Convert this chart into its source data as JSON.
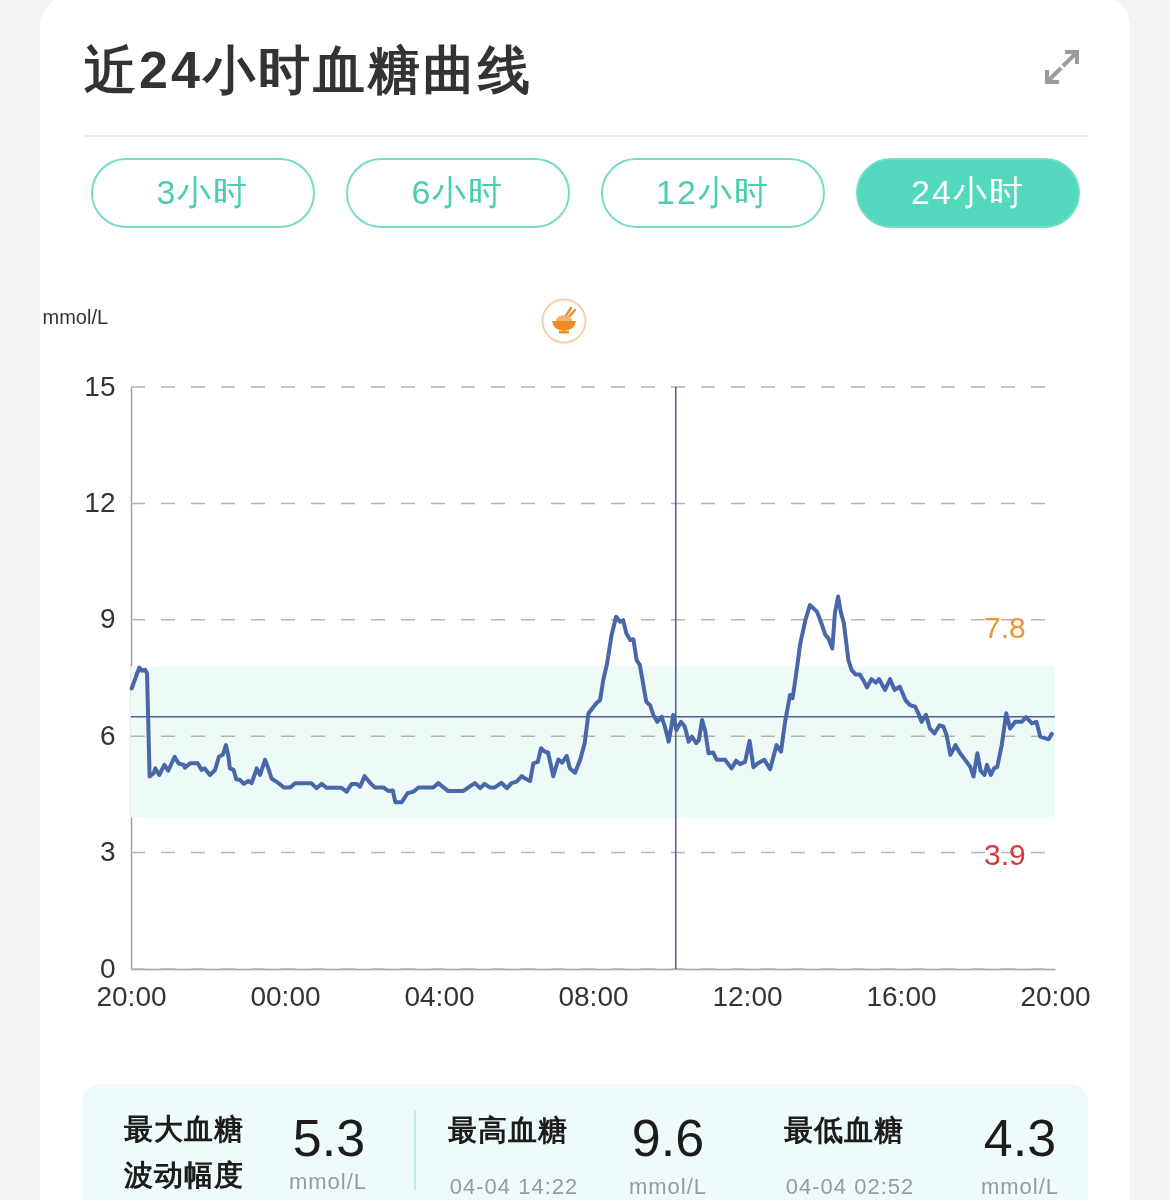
{
  "chart_data": [
    {
      "type": "line",
      "title": "近24小时血糖曲线",
      "ylabel": "mmol/L",
      "x": [
        "--04-03T20:01",
        "--04-03T20:13",
        "--04-03T20:17",
        "--04-03T20:22",
        "--04-03T20:25",
        "--04-03T20:29",
        "--04-03T20:35",
        "--04-03T20:38",
        "--04-03T20:44",
        "--04-03T20:52",
        "--04-03T20:58",
        "--04-03T21:08",
        "--04-03T21:14",
        "--04-03T21:22",
        "--04-03T21:24",
        "--04-03T21:32",
        "--04-03T21:44",
        "--04-03T21:50",
        "--04-03T21:55",
        "--04-03T22:03",
        "--04-03T22:11",
        "--04-03T22:17",
        "--04-03T22:23",
        "--04-03T22:28",
        "--04-03T22:32",
        "--04-03T22:34",
        "--04-03T22:40",
        "--04-03T22:44",
        "--04-03T22:50",
        "--04-03T22:56",
        "--04-03T23:03",
        "--04-03T23:08",
        "--04-03T23:16",
        "--04-03T23:21",
        "--04-03T23:29",
        "--04-03T23:34",
        "--04-03T23:39",
        "--04-03T23:50",
        "--04-03T23:58",
        "--04-04T00:08",
        "--04-04T00:16",
        "--04-04T00:41",
        "--04-04T00:49",
        "--04-04T00:57",
        "--04-04T01:05",
        "--04-04T01:28",
        "--04-04T01:36",
        "--04-04T01:44",
        "--04-04T01:52",
        "--04-04T01:57",
        "--04-04T02:04",
        "--04-04T02:13",
        "--04-04T02:20",
        "--04-04T02:33",
        "--04-04T02:41",
        "--04-04T02:48",
        "--04-04T02:52",
        "--04-04T03:02",
        "--04-04T03:11",
        "--04-04T03:20",
        "--04-04T03:28",
        "--04-04T03:51",
        "--04-04T03:59",
        "--04-04T04:04",
        "--04-04T04:14",
        "--04-04T04:38",
        "--04-04T04:46",
        "--04-04T04:56",
        "--04-04T05:04",
        "--04-04T05:11",
        "--04-04T05:19",
        "--04-04T05:27",
        "--04-04T05:37",
        "--04-04T05:46",
        "--04-04T05:53",
        "--04-04T06:01",
        "--04-04T06:09",
        "--04-04T06:14",
        "--04-04T06:22",
        "--04-04T06:27",
        "--04-04T06:34",
        "--04-04T06:39",
        "--04-04T06:45",
        "--04-04T06:50",
        "--04-04T06:58",
        "--04-04T07:06",
        "--04-04T07:12",
        "--04-04T07:19",
        "--04-04T07:24",
        "--04-04T07:32",
        "--04-04T07:40",
        "--04-04T07:47",
        "--04-04T07:53",
        "--04-04T08:01",
        "--04-04T08:06",
        "--04-04T08:11",
        "--04-04T08:16",
        "--04-04T08:22",
        "--04-04T08:29",
        "--04-04T08:36",
        "--04-04T08:42",
        "--04-04T08:47",
        "--04-04T08:52",
        "--04-04T08:58",
        "--04-04T09:03",
        "--04-04T09:08",
        "--04-04T09:13",
        "--04-04T09:18",
        "--04-04T09:23",
        "--04-04T09:29",
        "--04-04T09:34",
        "--04-04T09:40",
        "--04-04T09:47",
        "--04-04T09:52",
        "--04-04T09:58",
        "--04-04T10:02",
        "--04-04T10:05",
        "--04-04T10:10",
        "--04-04T10:17",
        "--04-04T10:23",
        "--04-04T10:29",
        "--04-04T10:34",
        "--04-04T10:41",
        "--04-04T10:45",
        "--04-04T10:50",
        "--04-04T10:55",
        "--04-04T11:00",
        "--04-04T11:07",
        "--04-04T11:13",
        "--04-04T11:26",
        "--04-04T11:36",
        "--04-04T11:43",
        "--04-04T11:49",
        "--04-04T11:57",
        "--04-04T12:04",
        "--04-04T12:10",
        "--04-04T12:17",
        "--04-04T12:27",
        "--04-04T12:36",
        "--04-04T12:46",
        "--04-04T12:53",
        "--04-04T12:59",
        "--04-04T13:07",
        "--04-04T13:11",
        "--04-04T13:16",
        "--04-04T13:23",
        "--04-04T13:31",
        "--04-04T13:38",
        "--04-04T13:49",
        "--04-04T13:56",
        "--04-04T14:02",
        "--04-04T14:07",
        "--04-04T14:13",
        "--04-04T14:17",
        "--04-04T14:22",
        "--04-04T14:26",
        "--04-04T14:31",
        "--04-04T14:38",
        "--04-04T14:43",
        "--04-04T14:49",
        "--04-04T14:56",
        "--04-04T15:01",
        "--04-04T15:07",
        "--04-04T15:14",
        "--04-04T15:21",
        "--04-04T15:26",
        "--04-04T15:35",
        "--04-04T15:43",
        "--04-04T15:50",
        "--04-04T15:58",
        "--04-04T16:07",
        "--04-04T16:14",
        "--04-04T16:22",
        "--04-04T16:27",
        "--04-04T16:32",
        "--04-04T16:39",
        "--04-04T16:45",
        "--04-04T16:52",
        "--04-04T17:00",
        "--04-04T17:06",
        "--04-04T17:11",
        "--04-04T17:17",
        "--04-04T17:25",
        "--04-04T17:32",
        "--04-04T17:40",
        "--04-04T17:48",
        "--04-04T17:53",
        "--04-04T17:59",
        "--04-04T18:04",
        "--04-04T18:10",
        "--04-04T18:14",
        "--04-04T18:20",
        "--04-04T18:25",
        "--04-04T18:30",
        "--04-04T18:37",
        "--04-04T18:44",
        "--04-04T18:50",
        "--04-04T18:58",
        "--04-04T19:08",
        "--04-04T19:15",
        "--04-04T19:24",
        "--04-04T19:31",
        "--04-04T19:37",
        "--04-04T19:44",
        "--04-04T19:50",
        "--04-04T19:55"
      ],
      "values": [
        7.23,
        7.77,
        7.69,
        7.71,
        7.62,
        4.96,
        5.04,
        5.17,
        5.0,
        5.26,
        5.11,
        5.47,
        5.3,
        5.26,
        5.19,
        5.3,
        5.3,
        5.13,
        5.17,
        5.0,
        5.13,
        5.47,
        5.52,
        5.77,
        5.47,
        5.17,
        5.13,
        4.89,
        4.87,
        4.77,
        4.85,
        4.79,
        5.17,
        5.0,
        5.39,
        5.17,
        4.91,
        4.79,
        4.68,
        4.68,
        4.79,
        4.79,
        4.66,
        4.77,
        4.67,
        4.67,
        4.57,
        4.77,
        4.77,
        4.7,
        4.97,
        4.79,
        4.68,
        4.68,
        4.59,
        4.6,
        4.3,
        4.3,
        4.53,
        4.57,
        4.68,
        4.68,
        4.79,
        4.72,
        4.59,
        4.59,
        4.68,
        4.79,
        4.66,
        4.77,
        4.68,
        4.68,
        4.8,
        4.66,
        4.79,
        4.83,
        4.97,
        4.91,
        4.85,
        5.3,
        5.34,
        5.69,
        5.6,
        5.58,
        4.97,
        5.4,
        5.32,
        5.49,
        5.17,
        5.06,
        5.39,
        5.82,
        6.59,
        6.76,
        6.86,
        6.93,
        7.45,
        7.88,
        8.61,
        9.08,
        8.95,
        8.99,
        8.65,
        8.48,
        8.5,
        7.96,
        7.84,
        7.36,
        6.89,
        6.8,
        6.55,
        6.37,
        6.5,
        6.25,
        5.86,
        6.25,
        6.55,
        6.16,
        6.37,
        6.25,
        5.86,
        5.99,
        5.82,
        5.9,
        6.42,
        6.12,
        5.56,
        5.58,
        5.39,
        5.39,
        5.17,
        5.37,
        5.28,
        5.34,
        5.88,
        5.2,
        5.3,
        5.39,
        5.15,
        5.77,
        5.6,
        6.33,
        7.06,
        6.98,
        7.53,
        8.39,
        8.99,
        9.38,
        9.21,
        8.91,
        8.61,
        8.52,
        8.26,
        9.17,
        9.6,
        9.21,
        8.91,
        7.96,
        7.71,
        7.59,
        7.59,
        7.45,
        7.26,
        7.47,
        7.38,
        7.47,
        7.19,
        7.47,
        7.19,
        7.28,
        6.93,
        6.8,
        6.76,
        6.59,
        6.37,
        6.55,
        6.2,
        6.07,
        6.28,
        6.25,
        6.03,
        5.52,
        5.77,
        5.56,
        5.39,
        5.21,
        4.96,
        5.56,
        5.11,
        5.0,
        5.26,
        5.0,
        5.17,
        5.21,
        5.77,
        6.59,
        6.2,
        6.37,
        6.37,
        6.49,
        6.33,
        6.37,
        5.99,
        5.95,
        5.92,
        6.06
      ],
      "color": "#4767a8",
      "xlim": [
        "--04-03T20:00",
        "--04-04T20:00"
      ],
      "xticks": [
        {
          "value": "--04-03T20:00",
          "label": "20:00"
        },
        {
          "value": "--04-04T00:00",
          "label": "00:00"
        },
        {
          "value": "--04-04T04:00",
          "label": "04:00"
        },
        {
          "value": "--04-04T08:00",
          "label": "08:00"
        },
        {
          "value": "--04-04T12:00",
          "label": "12:00"
        },
        {
          "value": "--04-04T16:00",
          "label": "16:00"
        },
        {
          "value": "--04-04T20:00",
          "label": "20:00"
        }
      ],
      "ylim": [
        0,
        15
      ],
      "yticks": [
        0,
        3,
        6,
        9,
        12,
        15
      ],
      "grid": "y",
      "bands": [
        {
          "axis": "y",
          "from": 3.9,
          "to": 7.8,
          "color": "#edfaf8"
        }
      ],
      "ref_lines": [
        {
          "axis": "x",
          "value": "--04-04T10:09",
          "color": "#4a5f8c"
        },
        {
          "axis": "y",
          "value": 6.5,
          "color": "#4a5f8c"
        }
      ],
      "annotations": [
        "3小时",
        "6小时",
        "12小时",
        "24小时",
        {
          "text": "7.8",
          "x": "--04-04T18:42",
          "y": 7.8
        },
        {
          "text": "3.9",
          "x": "--04-04T18:42",
          "y": 3.9
        }
      ]
    },
    {
      "type": "other",
      "annotations": [
        "最大血糖波动幅度",
        "5.3",
        "mmol/L",
        "最高血糖",
        "04-04 14:22",
        "9.6",
        "mmol/L",
        "最低血糖",
        "04-04 02:52",
        "4.3",
        "mmol/L"
      ]
    }
  ]
}
